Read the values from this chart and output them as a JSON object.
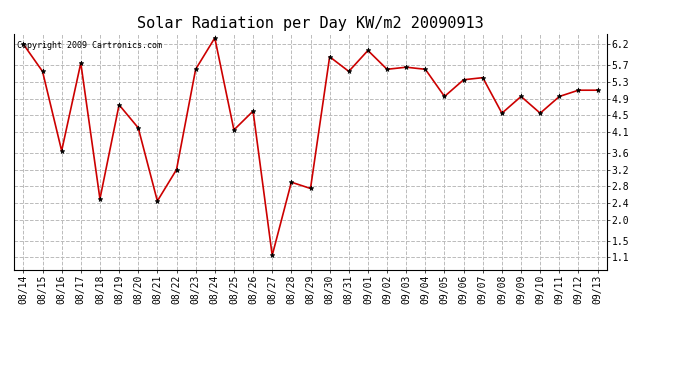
{
  "title": "Solar Radiation per Day KW/m2 20090913",
  "copyright_text": "Copyright 2009 Cartronics.com",
  "dates": [
    "08/14",
    "08/15",
    "08/16",
    "08/17",
    "08/18",
    "08/19",
    "08/20",
    "08/21",
    "08/22",
    "08/23",
    "08/24",
    "08/25",
    "08/26",
    "08/27",
    "08/28",
    "08/29",
    "08/30",
    "08/31",
    "09/01",
    "09/02",
    "09/03",
    "09/04",
    "09/05",
    "09/06",
    "09/07",
    "09/08",
    "09/09",
    "09/10",
    "09/11",
    "09/12",
    "09/13"
  ],
  "values": [
    6.2,
    5.55,
    3.65,
    5.75,
    2.5,
    4.75,
    4.2,
    2.45,
    3.2,
    5.6,
    6.35,
    4.15,
    4.6,
    1.15,
    2.9,
    2.75,
    5.9,
    5.55,
    6.05,
    5.6,
    5.65,
    5.6,
    4.95,
    5.35,
    5.4,
    4.55,
    4.95,
    4.55,
    4.95,
    5.1,
    5.1
  ],
  "line_color": "#cc0000",
  "marker": "*",
  "marker_color": "#000000",
  "background_color": "#ffffff",
  "grid_color": "#bbbbbb",
  "yticks": [
    1.1,
    1.5,
    2.0,
    2.4,
    2.8,
    3.2,
    3.6,
    4.1,
    4.5,
    4.9,
    5.3,
    5.7,
    6.2
  ],
  "ylim": [
    0.8,
    6.45
  ],
  "title_fontsize": 11,
  "copyright_fontsize": 6,
  "tick_fontsize": 7
}
